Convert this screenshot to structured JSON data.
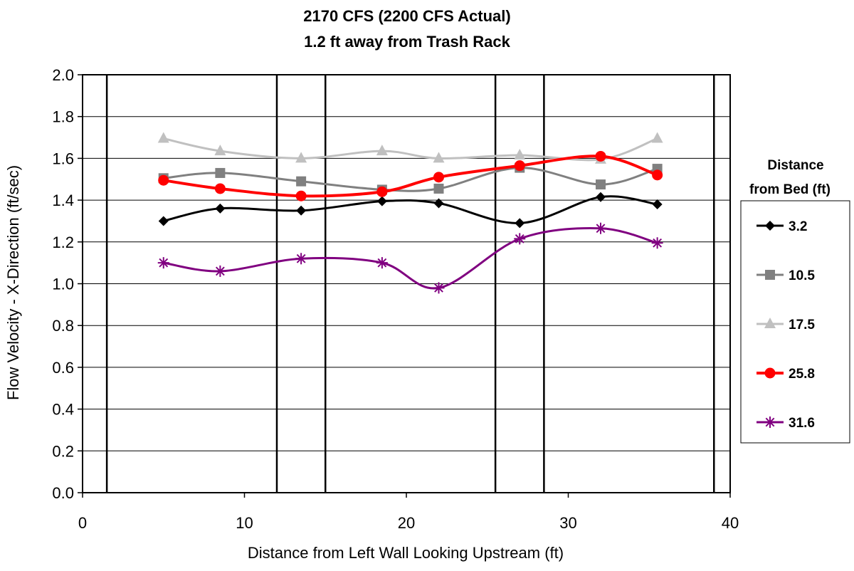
{
  "chart_data": {
    "type": "line",
    "title": [
      "2170 CFS (2200 CFS Actual)",
      "1.2 ft away from Trash Rack"
    ],
    "xlabel": "Distance from Left Wall Looking Upstream (ft)",
    "ylabel": "Flow Velocity - X-Direction (ft/sec)",
    "xlim": [
      0,
      40
    ],
    "ylim": [
      0.0,
      2.0
    ],
    "xticks": [
      0,
      10,
      20,
      30,
      40
    ],
    "yticks": [
      "0.0",
      "0.2",
      "0.4",
      "0.6",
      "0.8",
      "1.0",
      "1.2",
      "1.4",
      "1.6",
      "1.8",
      "2.0"
    ],
    "horizontal_grid": true,
    "vertical_reference_lines": [
      1.5,
      12,
      15,
      25.5,
      28.5,
      39
    ],
    "legend": {
      "title": [
        "Distance",
        "from Bed (ft)"
      ],
      "placement": "right"
    },
    "x": [
      5,
      8.5,
      13.5,
      18.5,
      22,
      27,
      32,
      35.5
    ],
    "series": [
      {
        "name": "3.2",
        "color": "#000000",
        "marker": "diamond",
        "values": [
          1.3,
          1.36,
          1.35,
          1.395,
          1.385,
          1.29,
          1.415,
          1.38
        ]
      },
      {
        "name": "10.5",
        "color": "#808080",
        "marker": "square",
        "values": [
          1.505,
          1.53,
          1.49,
          1.45,
          1.455,
          1.555,
          1.475,
          1.55
        ]
      },
      {
        "name": "17.5",
        "color": "#c0c0c0",
        "marker": "triangle",
        "values": [
          1.695,
          1.635,
          1.6,
          1.635,
          1.6,
          1.615,
          1.595,
          1.695
        ]
      },
      {
        "name": "25.8",
        "color": "#ff0000",
        "marker": "circle",
        "values": [
          1.495,
          1.455,
          1.42,
          1.44,
          1.51,
          1.565,
          1.61,
          1.52
        ]
      },
      {
        "name": "31.6",
        "color": "#800080",
        "marker": "asterisk",
        "values": [
          1.1,
          1.06,
          1.12,
          1.1,
          0.98,
          1.215,
          1.265,
          1.195
        ]
      }
    ]
  }
}
